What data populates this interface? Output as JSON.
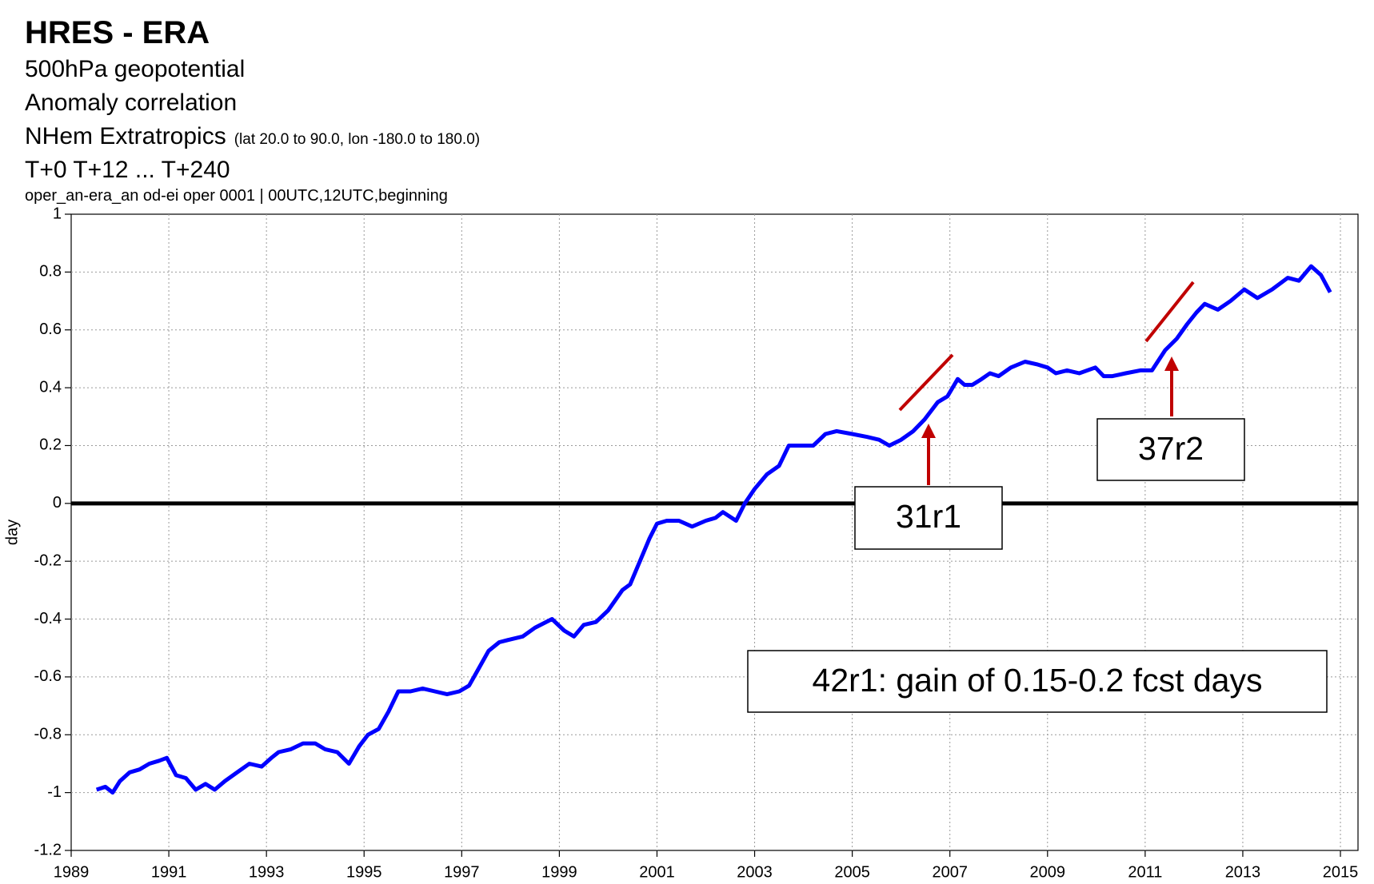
{
  "chart_data": {
    "type": "line",
    "title": "HRES - ERA",
    "subtitle_lines": [
      "500hPa geopotential",
      "Anomaly correlation"
    ],
    "region": "NHem Extratropics",
    "region_detail": "(lat  20.0 to 90.0, lon  -180.0 to  180.0)",
    "steps": "T+0 T+12 ... T+240",
    "info": "oper_an-era_an od-ei oper 0001 | 00UTC,12UTC,beginning",
    "ylabel": "day",
    "x": [
      1989.52,
      1989.7,
      1989.85,
      1990.0,
      1990.2,
      1990.4,
      1990.6,
      1990.8,
      1990.96,
      1991.15,
      1991.35,
      1991.55,
      1991.75,
      1991.94,
      1992.15,
      1992.4,
      1992.65,
      1992.9,
      1993.1,
      1993.25,
      1993.5,
      1993.75,
      1994.0,
      1994.2,
      1994.45,
      1994.69,
      1994.9,
      1995.08,
      1995.3,
      1995.5,
      1995.7,
      1995.95,
      1996.2,
      1996.45,
      1996.7,
      1996.95,
      1997.15,
      1997.35,
      1997.55,
      1997.77,
      1998.0,
      1998.25,
      1998.5,
      1998.85,
      1999.1,
      1999.3,
      1999.5,
      1999.75,
      2000.0,
      2000.29,
      2000.45,
      2000.65,
      2000.85,
      2001.0,
      2001.2,
      2001.45,
      2001.72,
      2002.0,
      2002.2,
      2002.35,
      2002.62,
      2002.8,
      2003.0,
      2003.25,
      2003.5,
      2003.7,
      2003.95,
      2004.2,
      2004.45,
      2004.68,
      2005.0,
      2005.3,
      2005.55,
      2005.76,
      2006.0,
      2006.25,
      2006.48,
      2006.75,
      2006.95,
      2007.16,
      2007.3,
      2007.46,
      2007.65,
      2007.82,
      2008.0,
      2008.25,
      2008.54,
      2008.8,
      2009.0,
      2009.17,
      2009.4,
      2009.65,
      2009.98,
      2010.15,
      2010.33,
      2010.6,
      2010.9,
      2011.14,
      2011.41,
      2011.65,
      2011.86,
      2012.05,
      2012.22,
      2012.49,
      2012.75,
      2013.03,
      2013.3,
      2013.6,
      2013.92,
      2014.15,
      2014.4,
      2014.6,
      2014.79
    ],
    "series": [
      {
        "name": "HRES - ERA",
        "color": "#0000ff",
        "values": [
          -0.99,
          -0.98,
          -1.0,
          -0.96,
          -0.93,
          -0.92,
          -0.9,
          -0.89,
          -0.88,
          -0.94,
          -0.95,
          -0.99,
          -0.97,
          -0.99,
          -0.96,
          -0.93,
          -0.9,
          -0.91,
          -0.88,
          -0.86,
          -0.85,
          -0.83,
          -0.83,
          -0.85,
          -0.86,
          -0.9,
          -0.84,
          -0.8,
          -0.78,
          -0.72,
          -0.65,
          -0.65,
          -0.64,
          -0.65,
          -0.66,
          -0.65,
          -0.63,
          -0.57,
          -0.51,
          -0.48,
          -0.47,
          -0.46,
          -0.43,
          -0.4,
          -0.44,
          -0.46,
          -0.42,
          -0.41,
          -0.37,
          -0.3,
          -0.28,
          -0.2,
          -0.12,
          -0.07,
          -0.06,
          -0.06,
          -0.08,
          -0.06,
          -0.05,
          -0.03,
          -0.06,
          0.0,
          0.05,
          0.1,
          0.13,
          0.2,
          0.2,
          0.2,
          0.24,
          0.25,
          0.24,
          0.23,
          0.22,
          0.2,
          0.22,
          0.25,
          0.29,
          0.35,
          0.37,
          0.43,
          0.41,
          0.41,
          0.43,
          0.45,
          0.44,
          0.47,
          0.49,
          0.48,
          0.47,
          0.45,
          0.46,
          0.45,
          0.47,
          0.44,
          0.44,
          0.45,
          0.46,
          0.46,
          0.53,
          0.57,
          0.62,
          0.66,
          0.69,
          0.67,
          0.7,
          0.74,
          0.71,
          0.74,
          0.78,
          0.77,
          0.82,
          0.79,
          0.73
        ]
      }
    ],
    "xlim": [
      1989,
      2015.36
    ],
    "xticks": [
      1989,
      1991,
      1993,
      1995,
      1997,
      1999,
      2001,
      2003,
      2005,
      2007,
      2009,
      2011,
      2013,
      2015
    ],
    "ylim": [
      -1.2,
      1
    ],
    "yticks": [
      -1.2,
      -1,
      -0.8,
      -0.6,
      -0.4,
      -0.2,
      0,
      0.2,
      0.4,
      0.6,
      0.8,
      1
    ],
    "grid": true,
    "annotations": [
      "31r1",
      "37r2",
      "42r1: gain of 0.15-0.2 fcst days"
    ],
    "annotation_color": "#c00000"
  }
}
